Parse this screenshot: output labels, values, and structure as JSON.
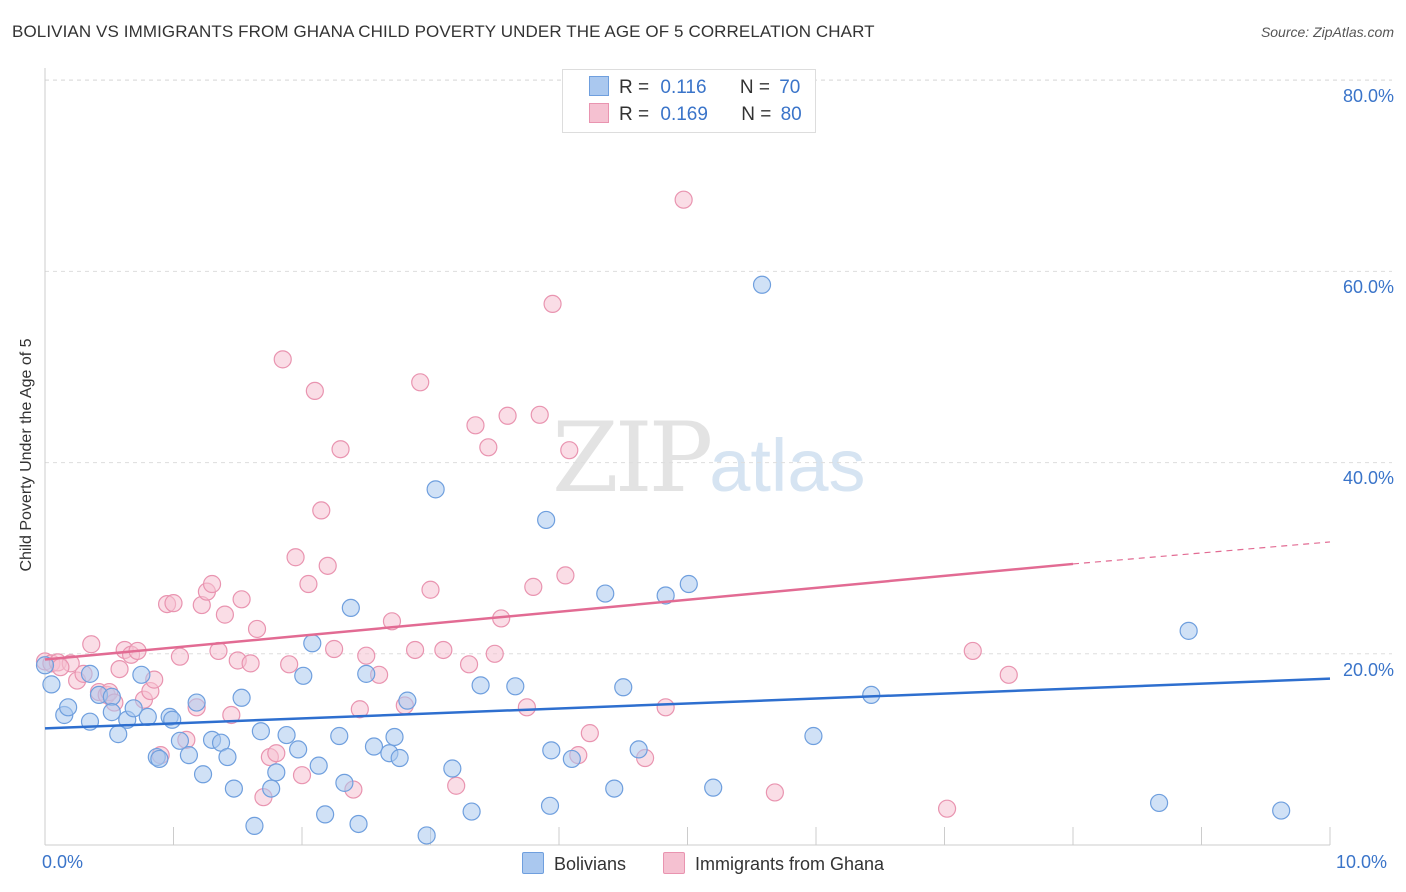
{
  "title": "BOLIVIAN VS IMMIGRANTS FROM GHANA CHILD POVERTY UNDER THE AGE OF 5 CORRELATION CHART",
  "source": "Source: ZipAtlas.com",
  "watermark": {
    "zip": "ZIP",
    "atlas": "atlas"
  },
  "colors": {
    "blue": "#6f9fde",
    "blue_fill": "#aac8ef",
    "pink": "#e994b0",
    "pink_fill": "#f5c1d1",
    "blue_line": "#2e6fcf",
    "pink_line": "#e26b93",
    "grid": "#dddddd",
    "tick_text": "#3a74c9"
  },
  "legend_top": [
    {
      "r_label": "R =",
      "r_value": "0.116",
      "n_label": "N =",
      "n_value": "70"
    },
    {
      "r_label": "R =",
      "r_value": "0.169",
      "n_label": "N =",
      "n_value": "80"
    }
  ],
  "chart_data": {
    "type": "scatter",
    "title": "BOLIVIAN VS IMMIGRANTS FROM GHANA CHILD POVERTY UNDER THE AGE OF 5 CORRELATION CHART",
    "xlabel": "",
    "ylabel": "Child Poverty Under the Age of 5",
    "xlim": [
      0,
      10
    ],
    "ylim": [
      0,
      80
    ],
    "x_tick_labels": [
      "0.0%",
      "10.0%"
    ],
    "y_ticks": [
      20,
      40,
      60,
      80
    ],
    "y_tick_labels": [
      "20.0%",
      "40.0%",
      "60.0%",
      "80.0%"
    ],
    "legend": [
      "Bolivians",
      "Immigrants from Ghana"
    ],
    "series": [
      {
        "name": "Bolivians",
        "R": 0.116,
        "N": 70,
        "trend": {
          "x": [
            0,
            10
          ],
          "y": [
            12.2,
            17.4
          ]
        },
        "points": [
          [
            0.0,
            18.8
          ],
          [
            0.05,
            16.8
          ],
          [
            0.15,
            13.6
          ],
          [
            0.18,
            14.4
          ],
          [
            0.35,
            17.9
          ],
          [
            0.35,
            12.9
          ],
          [
            0.42,
            15.7
          ],
          [
            0.52,
            15.5
          ],
          [
            0.52,
            13.9
          ],
          [
            0.57,
            11.6
          ],
          [
            0.64,
            13.1
          ],
          [
            0.69,
            14.3
          ],
          [
            0.75,
            17.8
          ],
          [
            0.8,
            13.4
          ],
          [
            0.87,
            9.2
          ],
          [
            0.89,
            9.0
          ],
          [
            0.97,
            13.4
          ],
          [
            0.99,
            13.1
          ],
          [
            1.05,
            10.9
          ],
          [
            1.12,
            9.4
          ],
          [
            1.18,
            14.9
          ],
          [
            1.23,
            7.4
          ],
          [
            1.3,
            11.0
          ],
          [
            1.37,
            10.7
          ],
          [
            1.42,
            9.2
          ],
          [
            1.47,
            5.9
          ],
          [
            1.53,
            15.4
          ],
          [
            1.63,
            2.0
          ],
          [
            1.68,
            11.9
          ],
          [
            1.76,
            5.9
          ],
          [
            1.8,
            7.6
          ],
          [
            1.88,
            11.5
          ],
          [
            1.97,
            10.0
          ],
          [
            2.01,
            17.7
          ],
          [
            2.08,
            21.1
          ],
          [
            2.13,
            8.3
          ],
          [
            2.18,
            3.2
          ],
          [
            2.29,
            11.4
          ],
          [
            2.33,
            6.5
          ],
          [
            2.38,
            24.8
          ],
          [
            2.44,
            2.2
          ],
          [
            2.5,
            17.9
          ],
          [
            2.56,
            10.3
          ],
          [
            2.68,
            9.6
          ],
          [
            2.72,
            11.3
          ],
          [
            2.76,
            9.1
          ],
          [
            2.82,
            15.1
          ],
          [
            2.97,
            1.0
          ],
          [
            3.04,
            37.2
          ],
          [
            3.17,
            8.0
          ],
          [
            3.32,
            3.5
          ],
          [
            3.39,
            16.7
          ],
          [
            3.66,
            16.6
          ],
          [
            3.9,
            34.0
          ],
          [
            3.93,
            4.1
          ],
          [
            3.94,
            9.9
          ],
          [
            4.1,
            9.0
          ],
          [
            4.36,
            26.3
          ],
          [
            4.43,
            5.9
          ],
          [
            4.5,
            16.5
          ],
          [
            4.62,
            10.0
          ],
          [
            4.83,
            26.1
          ],
          [
            5.01,
            27.3
          ],
          [
            5.2,
            6.0
          ],
          [
            5.58,
            58.6
          ],
          [
            5.98,
            11.4
          ],
          [
            6.43,
            15.7
          ],
          [
            8.67,
            4.4
          ],
          [
            8.9,
            22.4
          ],
          [
            9.62,
            3.6
          ]
        ]
      },
      {
        "name": "Immigrants from Ghana",
        "R": 0.169,
        "N": 80,
        "trend": {
          "x": [
            0,
            8.0
          ],
          "y": [
            19.4,
            29.4
          ]
        },
        "trend_dashed": {
          "x": [
            8.0,
            10.0
          ],
          "y": [
            29.4,
            31.7
          ]
        },
        "points": [
          [
            0.0,
            19.2
          ],
          [
            0.05,
            19.0
          ],
          [
            0.1,
            19.1
          ],
          [
            0.2,
            19.0
          ],
          [
            0.25,
            17.2
          ],
          [
            0.3,
            17.9
          ],
          [
            0.36,
            21.0
          ],
          [
            0.42,
            16.0
          ],
          [
            0.48,
            15.7
          ],
          [
            0.5,
            16.0
          ],
          [
            0.54,
            14.9
          ],
          [
            0.58,
            18.4
          ],
          [
            0.62,
            20.4
          ],
          [
            0.67,
            19.9
          ],
          [
            0.72,
            20.3
          ],
          [
            0.77,
            15.2
          ],
          [
            0.82,
            16.1
          ],
          [
            0.85,
            17.3
          ],
          [
            0.9,
            9.4
          ],
          [
            0.95,
            25.2
          ],
          [
            1.0,
            25.3
          ],
          [
            1.05,
            19.7
          ],
          [
            1.1,
            11.0
          ],
          [
            1.18,
            14.4
          ],
          [
            1.22,
            25.1
          ],
          [
            1.26,
            26.5
          ],
          [
            1.3,
            27.3
          ],
          [
            1.35,
            20.3
          ],
          [
            1.4,
            24.1
          ],
          [
            1.45,
            13.6
          ],
          [
            1.5,
            19.3
          ],
          [
            1.53,
            25.7
          ],
          [
            1.6,
            19.0
          ],
          [
            1.65,
            22.6
          ],
          [
            1.7,
            5.0
          ],
          [
            1.75,
            9.2
          ],
          [
            1.8,
            9.6
          ],
          [
            1.85,
            50.8
          ],
          [
            1.9,
            18.9
          ],
          [
            1.95,
            30.1
          ],
          [
            2.0,
            7.3
          ],
          [
            2.05,
            27.3
          ],
          [
            2.1,
            47.5
          ],
          [
            2.15,
            35.0
          ],
          [
            2.2,
            29.2
          ],
          [
            2.25,
            20.5
          ],
          [
            2.3,
            41.4
          ],
          [
            2.4,
            5.8
          ],
          [
            2.45,
            14.2
          ],
          [
            2.5,
            19.8
          ],
          [
            2.6,
            17.8
          ],
          [
            2.7,
            23.4
          ],
          [
            2.8,
            14.6
          ],
          [
            2.88,
            20.4
          ],
          [
            2.92,
            48.4
          ],
          [
            3.0,
            26.7
          ],
          [
            3.1,
            20.4
          ],
          [
            3.2,
            6.2
          ],
          [
            3.3,
            18.9
          ],
          [
            3.35,
            43.9
          ],
          [
            3.45,
            41.6
          ],
          [
            3.5,
            20.0
          ],
          [
            3.55,
            23.7
          ],
          [
            3.6,
            44.9
          ],
          [
            3.75,
            14.4
          ],
          [
            3.8,
            27.0
          ],
          [
            3.85,
            45.0
          ],
          [
            3.95,
            56.6
          ],
          [
            4.05,
            28.2
          ],
          [
            4.08,
            41.3
          ],
          [
            4.15,
            9.4
          ],
          [
            4.24,
            11.7
          ],
          [
            4.67,
            9.1
          ],
          [
            4.83,
            14.4
          ],
          [
            4.97,
            67.5
          ],
          [
            5.68,
            5.5
          ],
          [
            7.02,
            3.8
          ],
          [
            7.22,
            20.3
          ],
          [
            7.5,
            17.8
          ],
          [
            0.12,
            18.6
          ]
        ]
      }
    ]
  }
}
